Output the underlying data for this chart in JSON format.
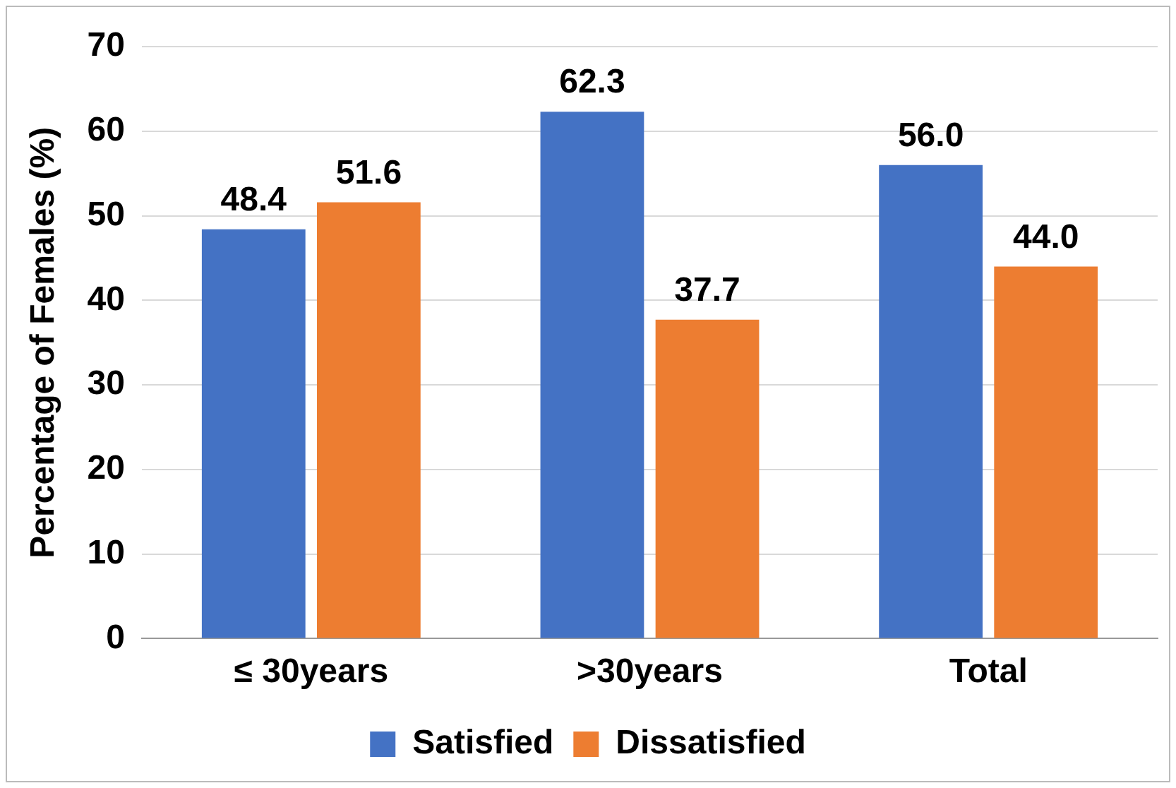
{
  "chart_data": {
    "type": "bar",
    "ylabel": "Percentage of Females (%)",
    "categories": [
      "≤ 30years",
      ">30years",
      "Total"
    ],
    "series": [
      {
        "name": "Satisfied",
        "color": "#4472c4",
        "values": [
          48.4,
          62.3,
          56.0
        ],
        "value_labels": [
          "48.4",
          "62.3",
          "56.0"
        ]
      },
      {
        "name": "Dissatisfied",
        "color": "#ed7d31",
        "values": [
          51.6,
          37.7,
          44.0
        ],
        "value_labels": [
          "51.6",
          "37.7",
          "44.0"
        ]
      }
    ],
    "ylim": [
      0,
      70
    ],
    "yticks": [
      0,
      10,
      20,
      30,
      40,
      50,
      60,
      70
    ],
    "grid": "y",
    "legend": "bottom"
  }
}
